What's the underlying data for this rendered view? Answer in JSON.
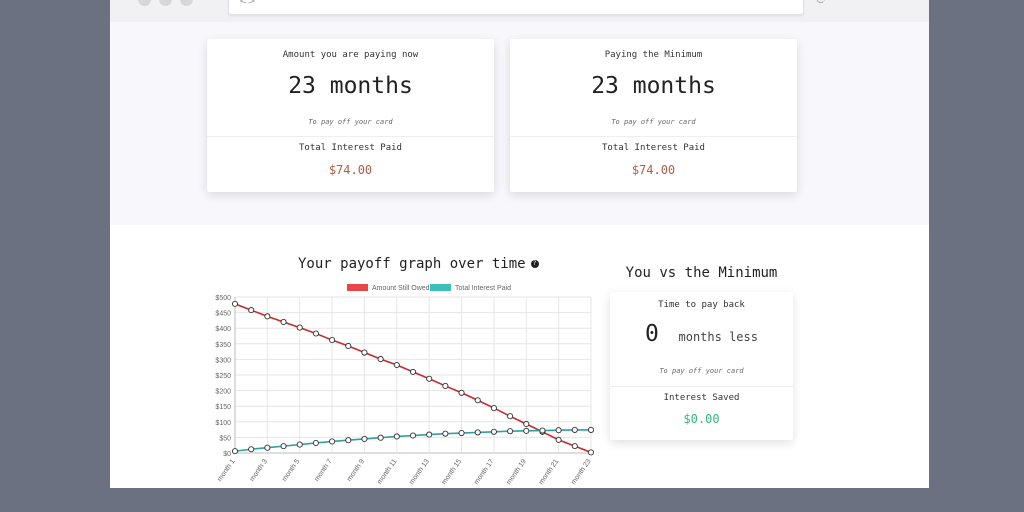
{
  "current": {
    "title": "Amount you are paying now",
    "months_value": "23 months",
    "note": "To pay off your card",
    "interest_label": "Total Interest Paid",
    "interest_value": "$74.00"
  },
  "minimum": {
    "title": "Paying the Minimum",
    "months_value": "23 months",
    "note": "To pay off your card",
    "interest_label": "Total Interest Paid",
    "interest_value": "$74.00"
  },
  "graph": {
    "title": "Your payoff graph over time",
    "info_icon": "?"
  },
  "comparison": {
    "title": "You vs the Minimum",
    "time_label": "Time to pay back",
    "months_number": "0",
    "months_text": "months less",
    "note": "To pay off your card",
    "saved_label": "Interest Saved",
    "saved_value": "$0.00"
  },
  "colors": {
    "owed": "#e8464a",
    "owed_line": "#c82a2a",
    "interest": "#3dbfb9",
    "interest_line": "#2f9fa0",
    "money_red": "#b85b44",
    "money_green": "#2fb97a"
  },
  "chart_data": {
    "type": "line",
    "legend": "top",
    "grid": true,
    "ylim": [
      0,
      500
    ],
    "yticks": [
      "$0",
      "$50",
      "$100",
      "$150",
      "$200",
      "$250",
      "$300",
      "$350",
      "$400",
      "$450",
      "$500"
    ],
    "categories": [
      "month 1",
      "month 2",
      "month 3",
      "month 4",
      "month 5",
      "month 6",
      "month 7",
      "month 8",
      "month 9",
      "month 10",
      "month 11",
      "month 12",
      "month 13",
      "month 14",
      "month 15",
      "month 16",
      "month 17",
      "month 18",
      "month 19",
      "month 20",
      "month 21",
      "month 22",
      "month 23"
    ],
    "tick_labels": [
      "month 1",
      "month 3",
      "month 5",
      "month 7",
      "month 9",
      "month 11",
      "month 13",
      "month 15",
      "month 17",
      "month 19",
      "month 21",
      "month 23"
    ],
    "series": [
      {
        "name": "Amount Still Owed",
        "values": [
          478,
          458,
          438,
          420,
          402,
          383,
          362,
          343,
          322,
          301,
          282,
          260,
          238,
          215,
          193,
          169,
          144,
          118,
          93,
          68,
          42,
          22,
          2
        ]
      },
      {
        "name": "Total Interest Paid",
        "values": [
          6,
          12,
          17,
          22,
          27,
          32,
          37,
          41,
          45,
          49,
          53,
          56,
          59,
          62,
          64,
          66,
          68,
          70,
          71,
          72,
          73,
          74,
          74
        ]
      }
    ]
  }
}
